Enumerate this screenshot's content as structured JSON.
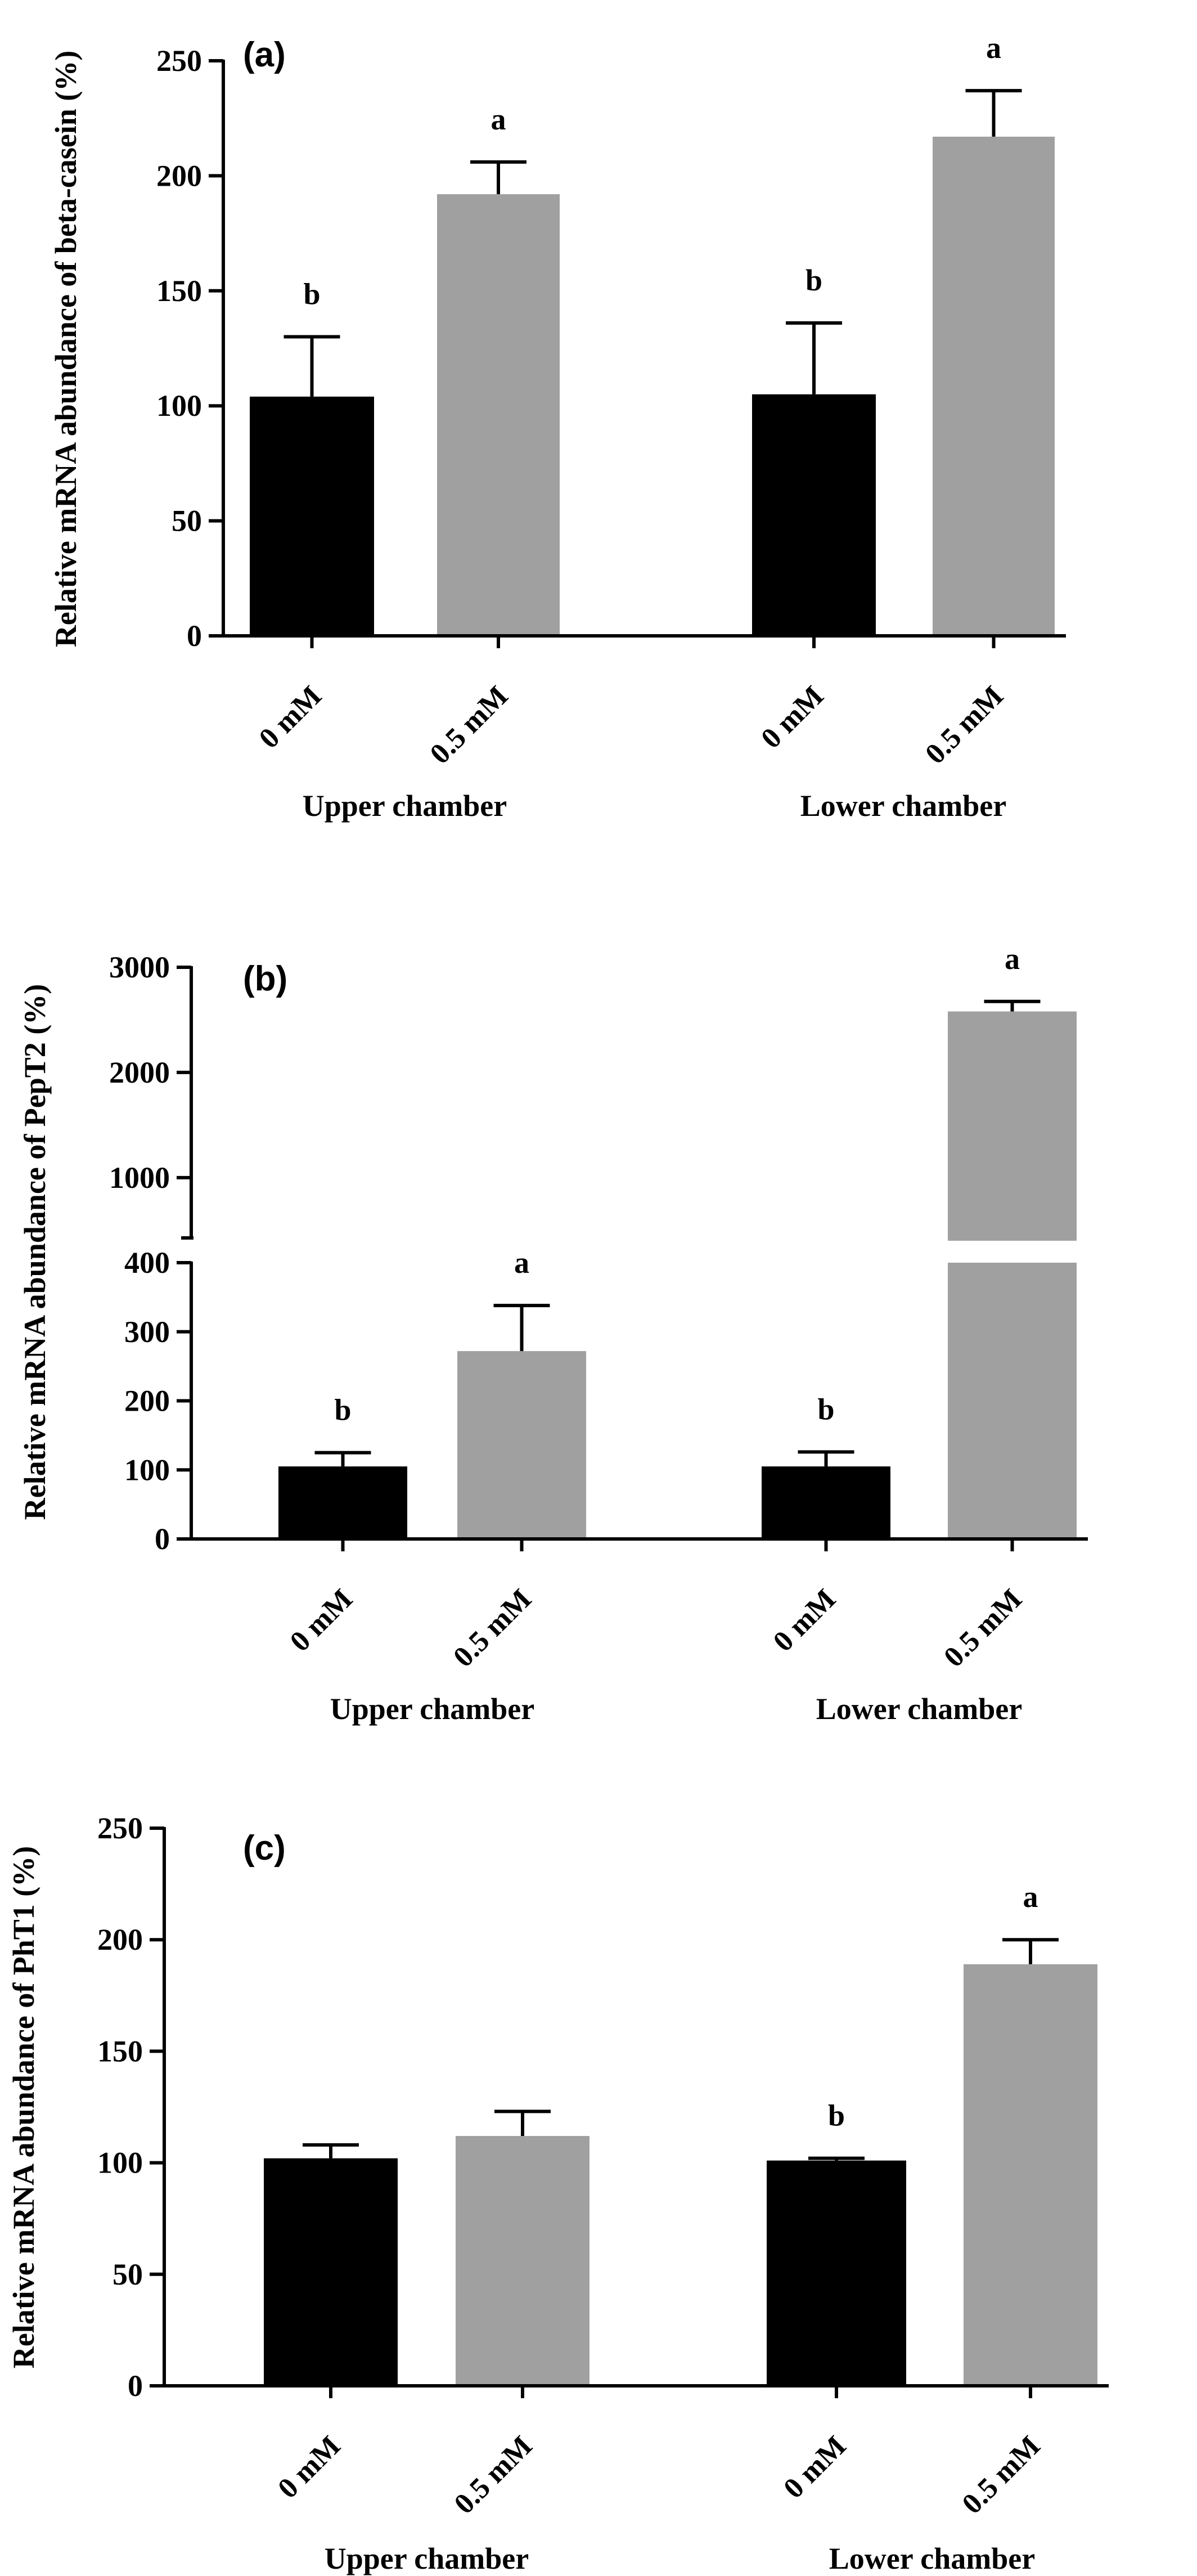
{
  "chart_data": [
    {
      "type": "bar",
      "panel_label": "(a)",
      "ylabel": "Relative mRNA abundance of beta-casein (%)",
      "ylim": [
        0,
        250
      ],
      "yticks": [
        0,
        50,
        100,
        150,
        200,
        250
      ],
      "groups": [
        "Upper chamber",
        "Lower chamber"
      ],
      "categories": [
        "0 mM",
        "0.5 mM"
      ],
      "series": [
        {
          "group": "Upper chamber",
          "values": [
            104,
            192
          ],
          "errors": [
            26,
            14
          ],
          "letters": [
            "b",
            "a"
          ]
        },
        {
          "group": "Lower chamber",
          "values": [
            105,
            217
          ],
          "errors": [
            31,
            20
          ],
          "letters": [
            "b",
            "a"
          ]
        }
      ],
      "colors": {
        "0 mM": "#000000",
        "0.5 mM": "#a0a0a0"
      },
      "grid": false
    },
    {
      "type": "bar",
      "panel_label": "(b)",
      "ylabel": "Relative mRNA abundance of PepT2 (%)",
      "axis_break": true,
      "ylim_lower": [
        0,
        400
      ],
      "yticks_lower": [
        0,
        100,
        200,
        300,
        400
      ],
      "ylim_upper": [
        400,
        3000
      ],
      "yticks_upper": [
        1000,
        2000,
        3000
      ],
      "groups": [
        "Upper chamber",
        "Lower chamber"
      ],
      "categories": [
        "0 mM",
        "0.5 mM"
      ],
      "series": [
        {
          "group": "Upper chamber",
          "values": [
            105,
            272
          ],
          "errors": [
            20,
            66
          ],
          "letters": [
            "b",
            "a"
          ]
        },
        {
          "group": "Lower chamber",
          "values": [
            105,
            2580
          ],
          "errors": [
            21,
            95
          ],
          "letters": [
            "b",
            "a"
          ]
        }
      ],
      "colors": {
        "0 mM": "#000000",
        "0.5 mM": "#a0a0a0"
      },
      "grid": false
    },
    {
      "type": "bar",
      "panel_label": "(c)",
      "ylabel": "Relative mRNA abundance of PhT1 (%)",
      "ylim": [
        0,
        250
      ],
      "yticks": [
        0,
        50,
        100,
        150,
        200,
        250
      ],
      "groups": [
        "Upper chamber",
        "Lower chamber"
      ],
      "categories": [
        "0 mM",
        "0.5 mM"
      ],
      "series": [
        {
          "group": "Upper chamber",
          "values": [
            102,
            112
          ],
          "errors": [
            6,
            11
          ],
          "letters": [
            "",
            ""
          ]
        },
        {
          "group": "Lower chamber",
          "values": [
            101,
            189
          ],
          "errors": [
            1,
            11
          ],
          "letters": [
            "b",
            "a"
          ]
        }
      ],
      "colors": {
        "0 mM": "#000000",
        "0.5 mM": "#a0a0a0"
      },
      "grid": false
    }
  ]
}
